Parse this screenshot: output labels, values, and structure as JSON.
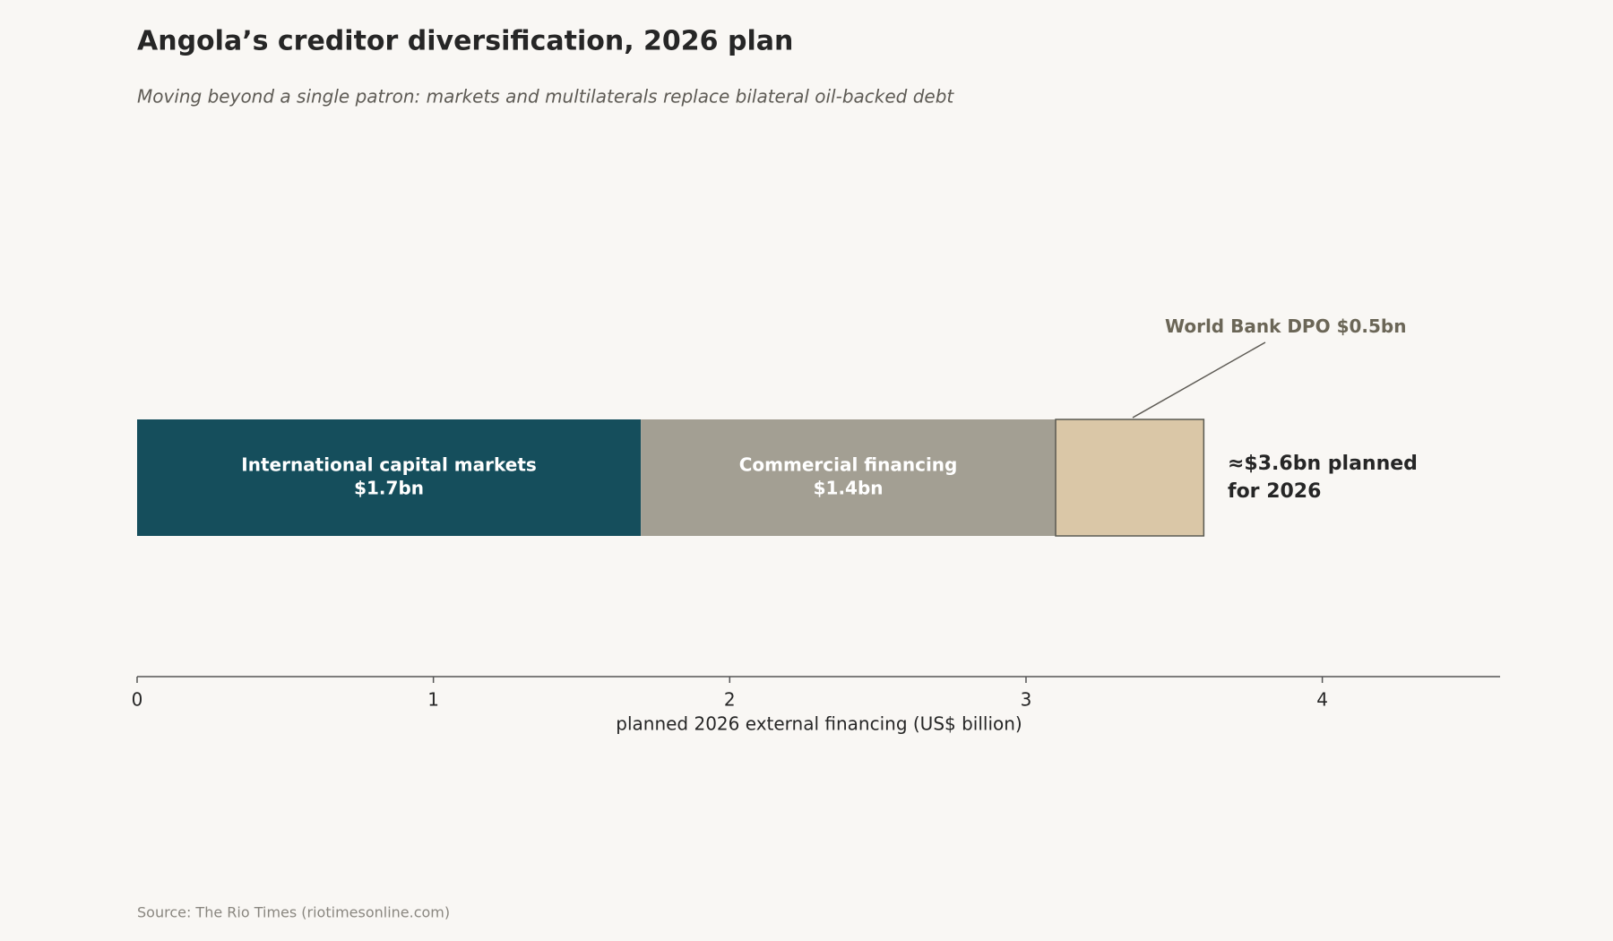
{
  "chart_data": {
    "type": "stacked-bar",
    "title": "Angola’s creditor diversification, 2026 plan",
    "subtitle": "Moving beyond a single patron: markets and multilaterals replace bilateral oil-backed debt",
    "series": [
      {
        "name": "International capital markets",
        "color": "#154e5c",
        "values": [
          1.7
        ],
        "value_labels": [
          "$1.7bn"
        ]
      },
      {
        "name": "Commercial financing",
        "color": "#a39f93",
        "values": [
          1.4
        ],
        "value_labels": [
          "$1.4bn"
        ]
      },
      {
        "name": "World Bank DPO",
        "color": "#dac7a7",
        "values": [
          0.5
        ],
        "value_labels": [
          "$0.5bn"
        ]
      }
    ],
    "total_annotation": [
      "≈$3.6bn planned",
      "for 2026"
    ],
    "xlabel": "planned 2026 external financing (US$ billion)",
    "xlim": [
      0,
      4.6
    ],
    "xticks": [
      0,
      1,
      2,
      3,
      4
    ],
    "source": "Source: The Rio Times (riotimesonline.com)"
  }
}
